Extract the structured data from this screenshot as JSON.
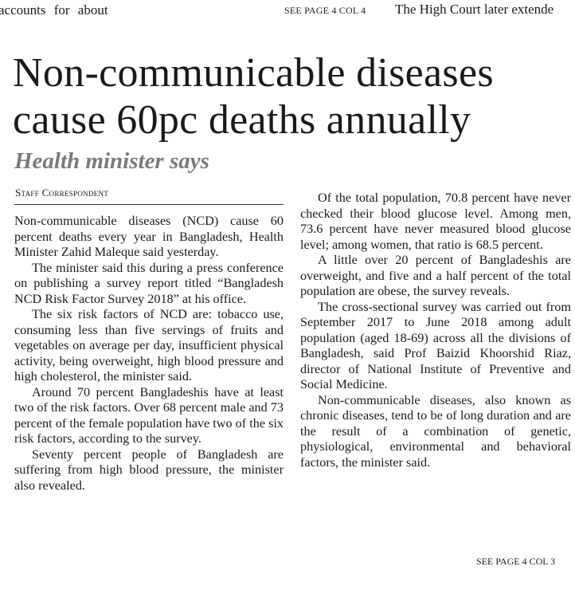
{
  "top_strip": {
    "left_text": "accounts for about",
    "see_page": "SEE PAGE 4 COL 4",
    "right_text": "The High Court later extende"
  },
  "article": {
    "headline_line1": "Non-communicable diseases",
    "headline_line2": "cause 60pc deaths annually",
    "subheadline": "Health minister says",
    "byline": "Staff Correspondent",
    "column1": [
      "Non-communicable diseases (NCD) cause 60 percent deaths every year in Bangladesh, Health Minister Zahid Maleque said yesterday.",
      "The minister said this during a press conference on publishing a survey report titled “Bangladesh NCD Risk Factor Survey 2018” at his office.",
      "The six risk factors of NCD are: tobacco use, consuming less than five servings of fruits and vegetables on average per day, insufficient physical activity, being overweight, high blood pressure and high cholesterol, the minister said.",
      "Around 70 percent Bangladeshis have at least two of the risk factors. Over 68 percent male and 73 percent of the female population have two of the six risk factors, according to the survey.",
      "Seventy percent people of Bangladesh are suffering from high blood pressure, the minister also revealed."
    ],
    "column2": [
      "Of the total population, 70.8 percent have never checked their blood glucose level. Among men, 73.6 percent have never measured blood glucose level; among women, that ratio is 68.5 percent.",
      "A little over 20 percent of Bangladeshis are overweight, and five and a half percent of the total population are obese, the survey reveals.",
      "The cross-sectional survey was carried out from September 2017 to June 2018 among adult population (aged 18-69) across all the divisions of Bangladesh, said Prof Baizid Khoorshid Riaz, director of National Institute of Preventive and Social Medicine.",
      "Non-communicable diseases, also known as chronic diseases, tend to be of long duration and are the result of a combination of genetic, physiological, environmental and behavioral factors, the minister said."
    ],
    "continued": "SEE PAGE 4 COL 3"
  }
}
